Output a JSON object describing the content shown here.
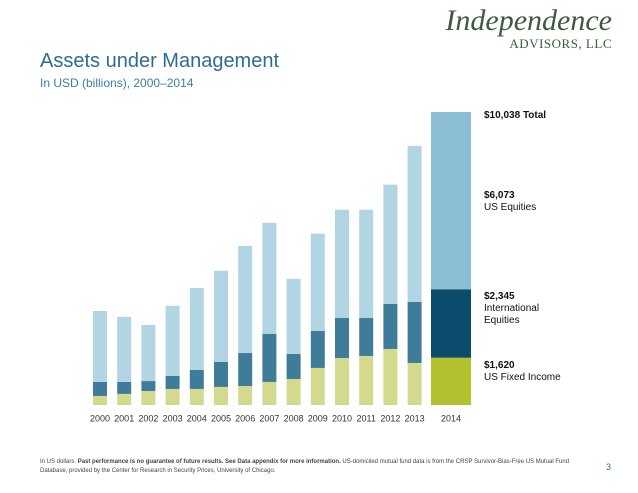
{
  "header": {
    "logo_line1": "Independence",
    "logo_line2": "ADVISORS, LLC"
  },
  "chart_data": {
    "type": "stacked_bar",
    "title": "Assets under Management",
    "subtitle": "In USD (billions), 2000–2014",
    "categories": [
      "2000",
      "2001",
      "2002",
      "2003",
      "2004",
      "2005",
      "2006",
      "2007",
      "2008",
      "2009",
      "2010",
      "2011",
      "2012",
      "2013",
      "2014"
    ],
    "highlight_category": "2014",
    "series": [
      {
        "name": "US Fixed Income",
        "color": "#d3da8e",
        "highlight_color": "#b4c12f",
        "values": [
          310,
          380,
          480,
          550,
          550,
          620,
          650,
          790,
          890,
          1270,
          1610,
          1680,
          1920,
          1440,
          1620
        ],
        "value_labels": [
          null,
          null,
          null,
          null,
          null,
          null,
          null,
          null,
          null,
          null,
          null,
          null,
          null,
          null,
          "$1,620"
        ]
      },
      {
        "name": "International Equities",
        "color": "#3f7c9a",
        "highlight_color": "#0b4b6b",
        "values": [
          480,
          410,
          340,
          450,
          650,
          860,
          1130,
          1650,
          860,
          1270,
          1370,
          1300,
          1540,
          2090,
          2345
        ],
        "value_labels": [
          null,
          null,
          null,
          null,
          null,
          null,
          null,
          null,
          null,
          null,
          null,
          null,
          null,
          null,
          "$2,345"
        ]
      },
      {
        "name": "US Equities",
        "color": "#b2d5e3",
        "highlight_color": "#8cbfd6",
        "values": [
          2430,
          2230,
          1920,
          2400,
          2810,
          3120,
          3670,
          3800,
          2570,
          3330,
          3710,
          3710,
          4090,
          5350,
          6073
        ],
        "value_labels": [
          null,
          null,
          null,
          null,
          null,
          null,
          null,
          null,
          null,
          null,
          null,
          null,
          null,
          null,
          "$6,073"
        ]
      }
    ],
    "total": 10038,
    "total_label": "$10,038",
    "total_name": "Total",
    "ylim": [
      0,
      10038
    ]
  },
  "footer": {
    "note_plain1": "In US dollars.",
    "note_bold": "Past performance is no guarantee of future results. See Data appendix for more information.",
    "note_plain2": "US-domiciled mutual fund data is from the CRSP Survivor-Bias-Free US Mutual Fund Database, provided by the Center for Research in Security Prices, University of Chicago.",
    "page_number": "3"
  }
}
